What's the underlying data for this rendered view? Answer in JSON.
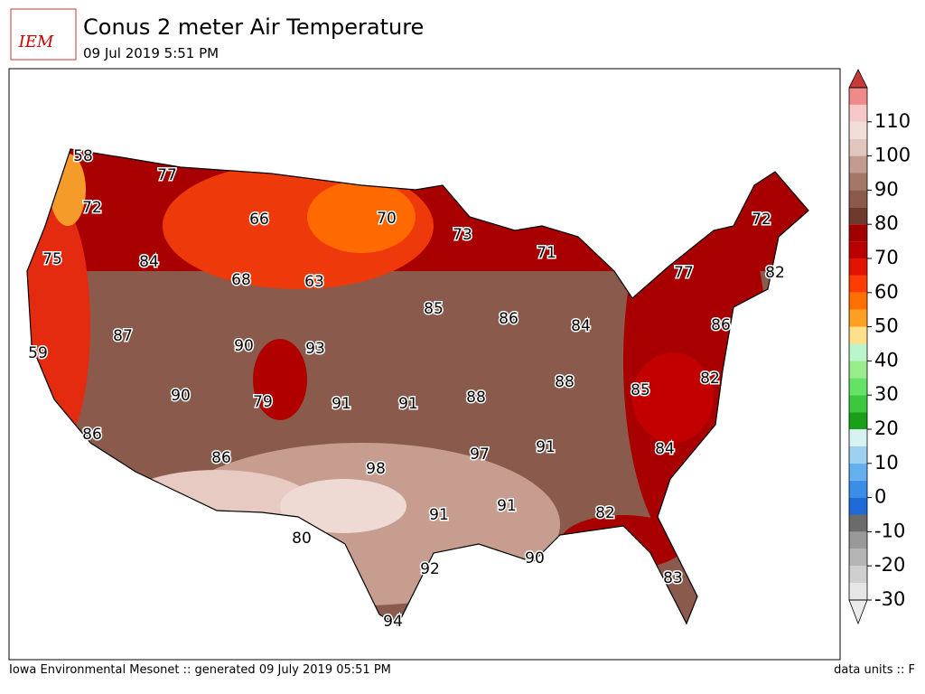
{
  "logo": "IEM",
  "title": "Conus 2 meter Air Temperature",
  "subtitle": "09 Jul 2019 5:51 PM",
  "footer_left": "Iowa Environmental Mesonet :: generated 09 July 2019 05:51 PM",
  "footer_right": "data units :: F",
  "contour_labels": [
    "58",
    "72",
    "77",
    "66",
    "70",
    "73",
    "71",
    "72",
    "82",
    "77",
    "75",
    "84",
    "68",
    "63",
    "85",
    "86",
    "84",
    "86",
    "87",
    "90",
    "93",
    "59",
    "82",
    "88",
    "85",
    "90",
    "79",
    "91",
    "91",
    "88",
    "86",
    "97",
    "91",
    "84",
    "86",
    "98",
    "91",
    "91",
    "82",
    "80",
    "90",
    "92",
    "83",
    "94"
  ],
  "colorbar": {
    "range": [
      -30,
      120
    ],
    "step": 5,
    "ticks": [
      -30,
      -20,
      -10,
      0,
      10,
      20,
      30,
      40,
      50,
      60,
      70,
      80,
      90,
      100,
      110
    ],
    "under_color": "#ebebeb",
    "over_color": "#c83a3a",
    "colors": [
      "#e6e6e6",
      "#cfcfcf",
      "#b5b5b5",
      "#999999",
      "#6b6b6b",
      "#1f6ad8",
      "#3a8ee8",
      "#64b0ee",
      "#9ed0f0",
      "#d8f2f2",
      "#18a018",
      "#3cc83c",
      "#64e264",
      "#98ec8c",
      "#bcf4cc",
      "#ffe08a",
      "#ffa020",
      "#ff7000",
      "#ff3c00",
      "#e01400",
      "#b80000",
      "#a00000",
      "#6e3a2e",
      "#8a5a4c",
      "#a37868",
      "#c19b8e",
      "#e0c6bc",
      "#f2ded8",
      "#f7c8c8",
      "#ee8a8a"
    ]
  }
}
